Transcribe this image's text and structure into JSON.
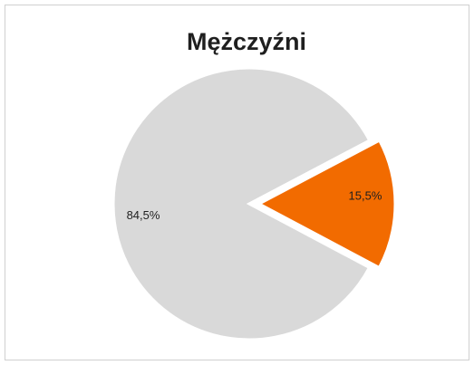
{
  "chart_data": {
    "type": "pie",
    "title": "Mężczyźni",
    "values": [
      84.5,
      15.5
    ],
    "value_labels": [
      "84,5%",
      "15,5%"
    ],
    "colors": [
      "#d9d9d9",
      "#f26b00"
    ],
    "exploded": [
      false,
      true
    ]
  }
}
